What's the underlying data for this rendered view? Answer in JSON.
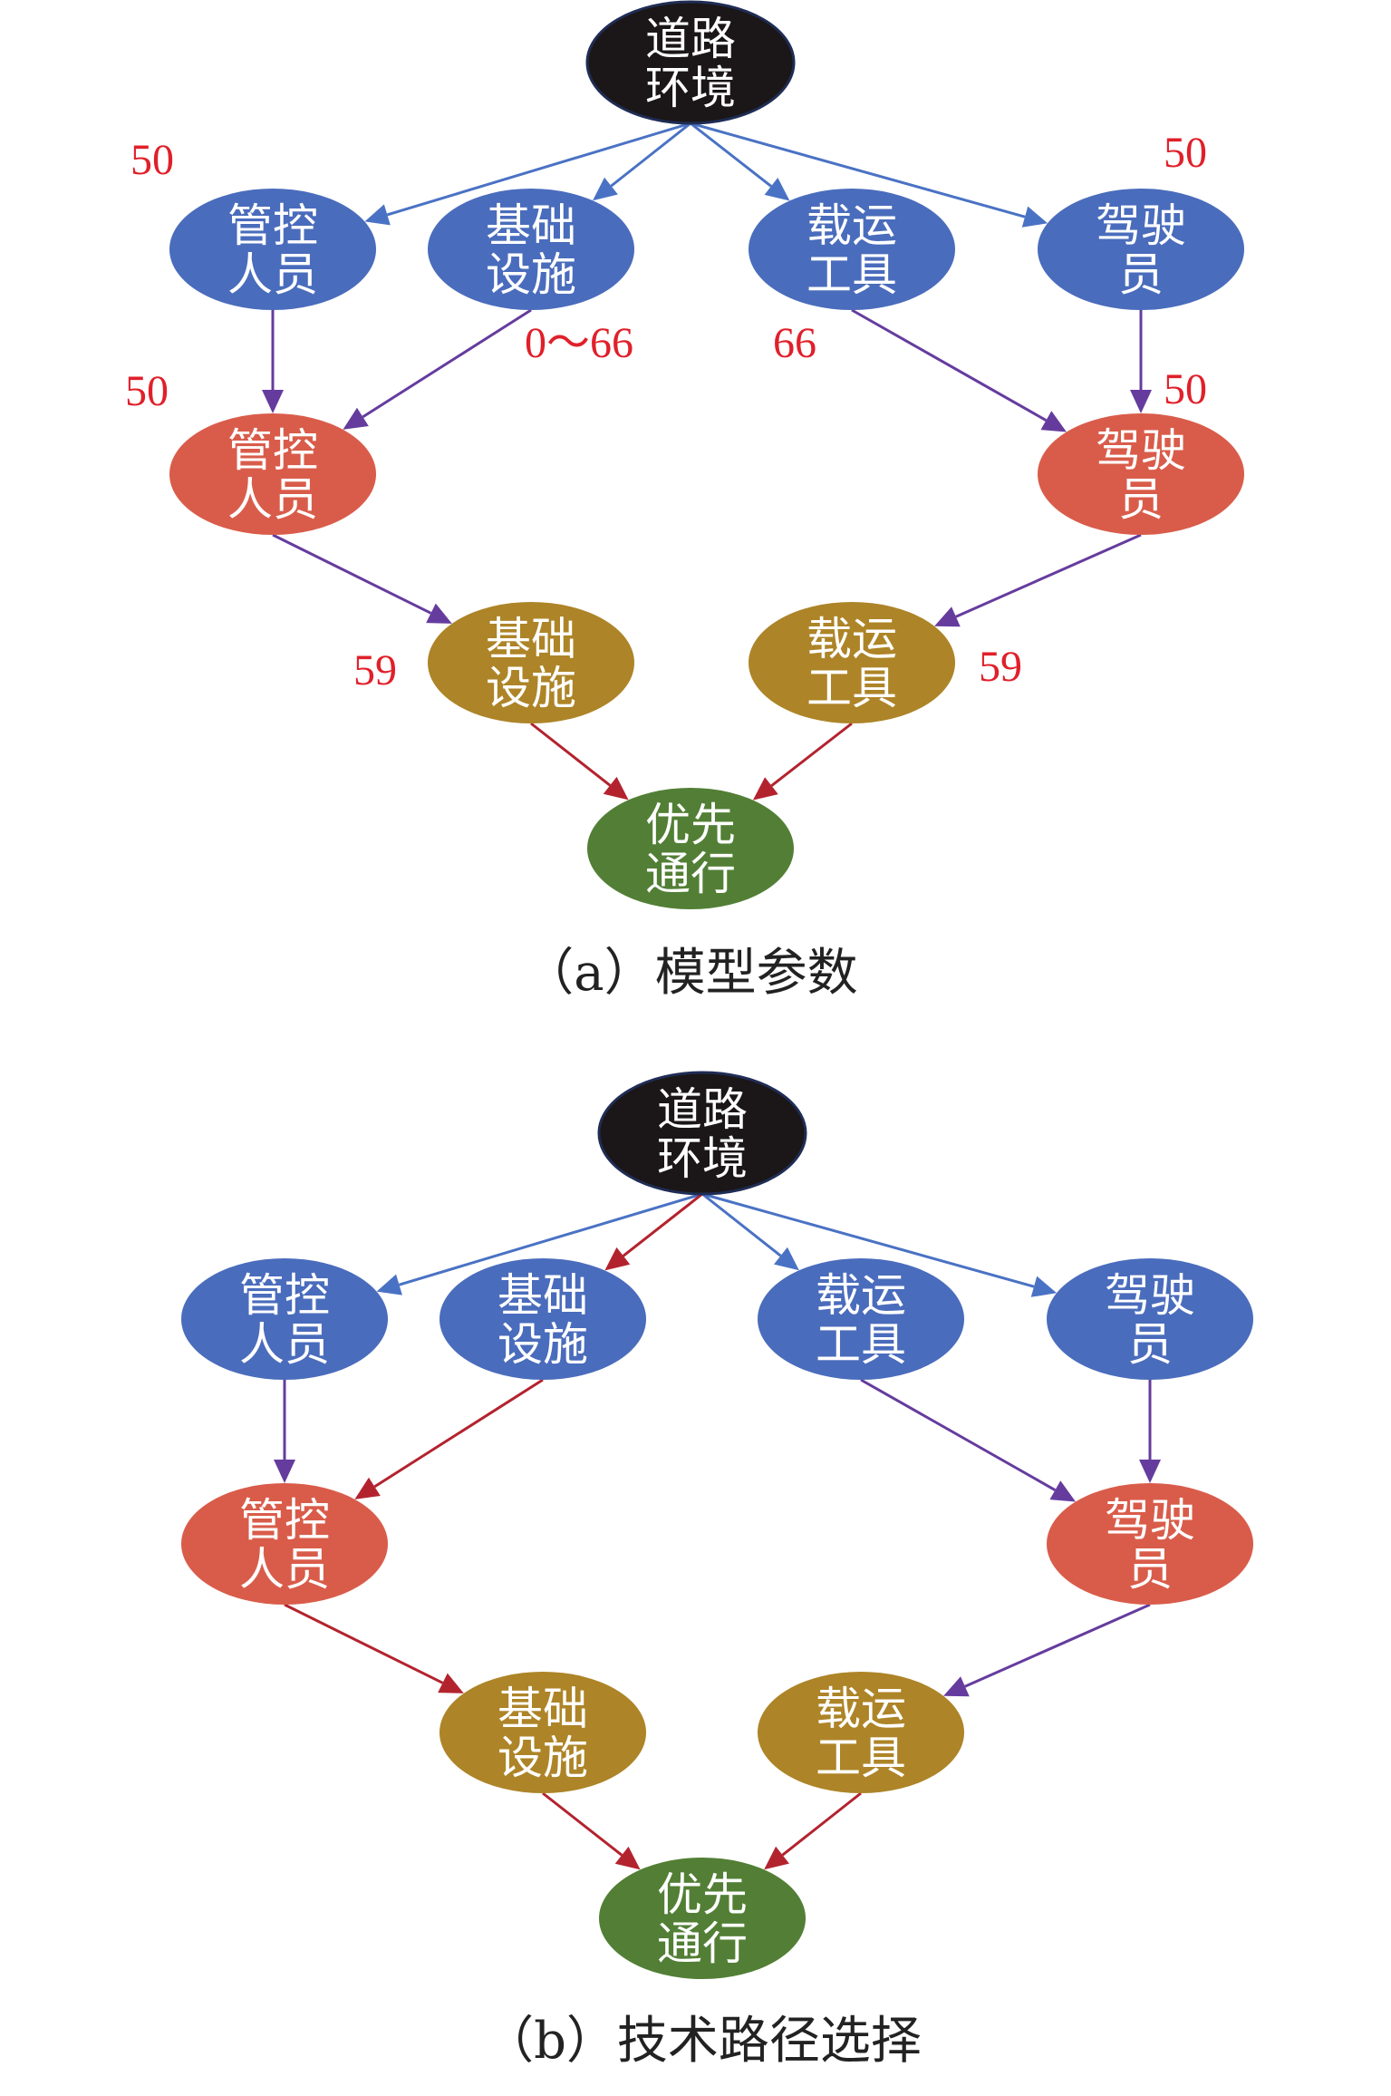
{
  "colors": {
    "root": "#1b1617",
    "layer1": "#4a6cbc",
    "layer2": "#d95c4a",
    "layer3": "#ad8427",
    "target": "#527f35",
    "edge_blue": "#4a72c4",
    "edge_purple": "#653c9e",
    "edge_red": "#b3232e",
    "number": "#e0202a"
  },
  "panels": [
    {
      "caption": "（a）模型参数",
      "nodes": [
        {
          "id": "road",
          "lines": [
            "道路",
            "环境"
          ],
          "level": "root"
        },
        {
          "id": "b_staff",
          "lines": [
            "管控",
            "人员"
          ],
          "level": "layer1"
        },
        {
          "id": "b_infra",
          "lines": [
            "基础",
            "设施"
          ],
          "level": "layer1"
        },
        {
          "id": "b_vehicle",
          "lines": [
            "载运",
            "工具"
          ],
          "level": "layer1"
        },
        {
          "id": "b_driver",
          "lines": [
            "驾驶",
            "员"
          ],
          "level": "layer1"
        },
        {
          "id": "r_staff",
          "lines": [
            "管控",
            "人员"
          ],
          "level": "layer2"
        },
        {
          "id": "r_driver",
          "lines": [
            "驾驶",
            "员"
          ],
          "level": "layer2"
        },
        {
          "id": "g_infra",
          "lines": [
            "基础",
            "设施"
          ],
          "level": "layer3"
        },
        {
          "id": "g_vehicle",
          "lines": [
            "载运",
            "工具"
          ],
          "level": "layer3"
        },
        {
          "id": "priority",
          "lines": [
            "优先",
            "通行"
          ],
          "level": "target"
        }
      ],
      "edges": [
        {
          "from": "road",
          "to": "b_staff",
          "color": "edge_blue"
        },
        {
          "from": "road",
          "to": "b_infra",
          "color": "edge_blue"
        },
        {
          "from": "road",
          "to": "b_vehicle",
          "color": "edge_blue"
        },
        {
          "from": "road",
          "to": "b_driver",
          "color": "edge_blue"
        },
        {
          "from": "b_staff",
          "to": "r_staff",
          "color": "edge_purple"
        },
        {
          "from": "b_infra",
          "to": "r_staff",
          "color": "edge_purple"
        },
        {
          "from": "b_vehicle",
          "to": "r_driver",
          "color": "edge_purple"
        },
        {
          "from": "b_driver",
          "to": "r_driver",
          "color": "edge_purple"
        },
        {
          "from": "r_staff",
          "to": "g_infra",
          "color": "edge_purple"
        },
        {
          "from": "r_driver",
          "to": "g_vehicle",
          "color": "edge_purple"
        },
        {
          "from": "g_infra",
          "to": "priority",
          "color": "edge_red"
        },
        {
          "from": "g_vehicle",
          "to": "priority",
          "color": "edge_red"
        }
      ],
      "parameters": [
        "50",
        "50",
        "0～66",
        "66",
        "50",
        "50",
        "59",
        "59"
      ]
    },
    {
      "caption": "（b）技术路径选择",
      "nodes": [
        {
          "id": "road",
          "lines": [
            "道路",
            "环境"
          ],
          "level": "root"
        },
        {
          "id": "b_staff",
          "lines": [
            "管控",
            "人员"
          ],
          "level": "layer1"
        },
        {
          "id": "b_infra",
          "lines": [
            "基础",
            "设施"
          ],
          "level": "layer1"
        },
        {
          "id": "b_vehicle",
          "lines": [
            "载运",
            "工具"
          ],
          "level": "layer1"
        },
        {
          "id": "b_driver",
          "lines": [
            "驾驶",
            "员"
          ],
          "level": "layer1"
        },
        {
          "id": "r_staff",
          "lines": [
            "管控",
            "人员"
          ],
          "level": "layer2"
        },
        {
          "id": "r_driver",
          "lines": [
            "驾驶",
            "员"
          ],
          "level": "layer2"
        },
        {
          "id": "g_infra",
          "lines": [
            "基础",
            "设施"
          ],
          "level": "layer3"
        },
        {
          "id": "g_vehicle",
          "lines": [
            "载运",
            "工具"
          ],
          "level": "layer3"
        },
        {
          "id": "priority",
          "lines": [
            "优先",
            "通行"
          ],
          "level": "target"
        }
      ],
      "edges": [
        {
          "from": "road",
          "to": "b_staff",
          "color": "edge_blue"
        },
        {
          "from": "road",
          "to": "b_infra",
          "color": "edge_red"
        },
        {
          "from": "road",
          "to": "b_vehicle",
          "color": "edge_blue"
        },
        {
          "from": "road",
          "to": "b_driver",
          "color": "edge_blue"
        },
        {
          "from": "b_staff",
          "to": "r_staff",
          "color": "edge_purple"
        },
        {
          "from": "b_infra",
          "to": "r_staff",
          "color": "edge_red"
        },
        {
          "from": "b_vehicle",
          "to": "r_driver",
          "color": "edge_purple"
        },
        {
          "from": "b_driver",
          "to": "r_driver",
          "color": "edge_purple"
        },
        {
          "from": "r_staff",
          "to": "g_infra",
          "color": "edge_red"
        },
        {
          "from": "r_driver",
          "to": "g_vehicle",
          "color": "edge_purple"
        },
        {
          "from": "g_infra",
          "to": "priority",
          "color": "edge_red"
        },
        {
          "from": "g_vehicle",
          "to": "priority",
          "color": "edge_red"
        }
      ],
      "parameters": []
    }
  ]
}
